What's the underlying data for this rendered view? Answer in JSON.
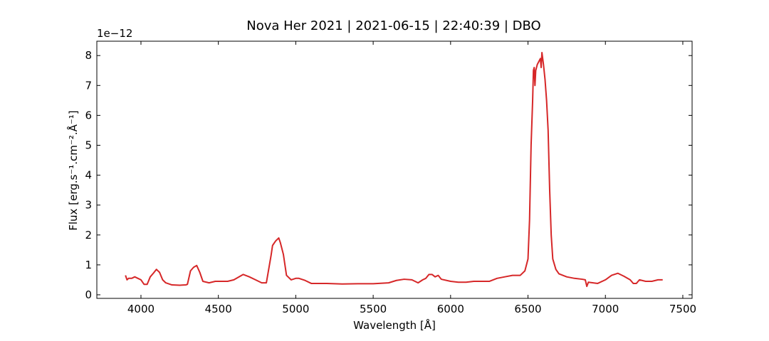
{
  "chart_data": {
    "type": "line",
    "title": "Nova Her 2021 | 2021-06-15 | 22:40:39 | DBO",
    "x_label": "Wavelength [Å]",
    "y_label": "Flux [erg.s⁻¹.cm⁻².Å⁻¹]",
    "y_offset_label": "1e−12",
    "xlim": [
      3715,
      7560
    ],
    "ylim": [
      -0.12,
      8.48
    ],
    "xticks": [
      4000,
      4500,
      5000,
      5500,
      6000,
      6500,
      7000,
      7500
    ],
    "yticks": [
      0,
      1,
      2,
      3,
      4,
      5,
      6,
      7,
      8
    ],
    "series": [
      {
        "color": "#d62728",
        "x": [
          3900,
          3910,
          3920,
          3940,
          3960,
          3980,
          4000,
          4020,
          4040,
          4060,
          4080,
          4100,
          4120,
          4140,
          4160,
          4200,
          4250,
          4290,
          4300,
          4320,
          4340,
          4360,
          4380,
          4400,
          4440,
          4480,
          4520,
          4560,
          4600,
          4640,
          4660,
          4700,
          4740,
          4780,
          4810,
          4840,
          4850,
          4870,
          4890,
          4900,
          4920,
          4940,
          4970,
          5000,
          5020,
          5060,
          5100,
          5150,
          5200,
          5300,
          5400,
          5500,
          5600,
          5650,
          5700,
          5750,
          5790,
          5820,
          5840,
          5860,
          5880,
          5900,
          5920,
          5940,
          6000,
          6050,
          6100,
          6150,
          6200,
          6250,
          6300,
          6350,
          6400,
          6450,
          6480,
          6500,
          6510,
          6520,
          6530,
          6535,
          6540,
          6545,
          6550,
          6560,
          6570,
          6580,
          6585,
          6590,
          6600,
          6610,
          6620,
          6630,
          6640,
          6650,
          6660,
          6680,
          6700,
          6750,
          6800,
          6850,
          6870,
          6880,
          6890,
          6920,
          6950,
          7000,
          7040,
          7080,
          7120,
          7160,
          7180,
          7200,
          7220,
          7260,
          7300,
          7340,
          7370
        ],
        "values": [
          0.65,
          0.5,
          0.55,
          0.55,
          0.6,
          0.55,
          0.5,
          0.35,
          0.35,
          0.6,
          0.72,
          0.85,
          0.75,
          0.5,
          0.4,
          0.33,
          0.32,
          0.33,
          0.35,
          0.8,
          0.92,
          0.98,
          0.75,
          0.45,
          0.4,
          0.45,
          0.45,
          0.45,
          0.5,
          0.62,
          0.68,
          0.6,
          0.5,
          0.4,
          0.4,
          1.3,
          1.65,
          1.8,
          1.9,
          1.75,
          1.35,
          0.65,
          0.5,
          0.55,
          0.55,
          0.48,
          0.38,
          0.38,
          0.38,
          0.36,
          0.37,
          0.37,
          0.4,
          0.48,
          0.52,
          0.5,
          0.4,
          0.5,
          0.55,
          0.68,
          0.68,
          0.6,
          0.65,
          0.52,
          0.45,
          0.42,
          0.42,
          0.45,
          0.45,
          0.45,
          0.55,
          0.6,
          0.65,
          0.65,
          0.8,
          1.2,
          2.5,
          5.0,
          6.5,
          7.5,
          7.6,
          7.0,
          7.5,
          7.7,
          7.8,
          7.9,
          7.6,
          8.1,
          7.7,
          7.2,
          6.5,
          5.5,
          3.5,
          2.0,
          1.2,
          0.85,
          0.7,
          0.6,
          0.55,
          0.52,
          0.5,
          0.28,
          0.42,
          0.4,
          0.38,
          0.5,
          0.65,
          0.72,
          0.62,
          0.5,
          0.38,
          0.38,
          0.5,
          0.45,
          0.45,
          0.5,
          0.5
        ]
      }
    ]
  }
}
